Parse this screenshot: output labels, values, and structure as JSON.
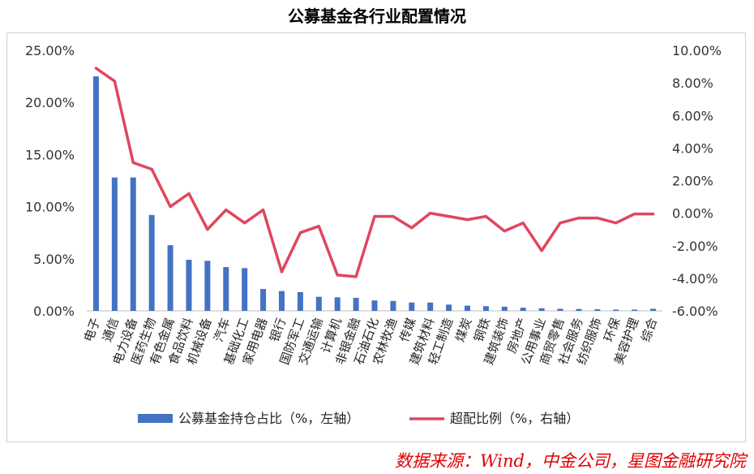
{
  "chart_data": {
    "type": "bar+line",
    "title": "公募基金各行业配置情况",
    "categories": [
      "电子",
      "通信",
      "电力设备",
      "医药生物",
      "有色金属",
      "食品饮料",
      "机械设备",
      "汽车",
      "基础化工",
      "家用电器",
      "银行",
      "国防军工",
      "交通运输",
      "计算机",
      "非银金融",
      "石油石化",
      "农林牧渔",
      "传媒",
      "建筑材料",
      "轻工制造",
      "煤炭",
      "钢铁",
      "建筑装饰",
      "房地产",
      "公用事业",
      "商贸零售",
      "社会服务",
      "纺织服饰",
      "环保",
      "美容护理",
      "综合"
    ],
    "series": [
      {
        "name": "公募基金持仓占比（%，左轴）",
        "axis": "left",
        "type": "bar",
        "color": "#4472C4",
        "values": [
          22.5,
          12.8,
          12.8,
          9.2,
          6.3,
          4.9,
          4.8,
          4.2,
          4.1,
          2.1,
          1.9,
          1.8,
          1.35,
          1.3,
          1.25,
          1.0,
          0.95,
          0.8,
          0.8,
          0.6,
          0.5,
          0.45,
          0.4,
          0.3,
          0.25,
          0.2,
          0.18,
          0.15,
          0.12,
          0.12,
          0.2
        ]
      },
      {
        "name": "超配比例（%，右轴）",
        "axis": "right",
        "type": "line",
        "color": "#E0465E",
        "values": [
          8.9,
          8.1,
          3.1,
          2.7,
          0.4,
          1.2,
          -1.0,
          0.2,
          -0.6,
          0.2,
          -3.6,
          -1.2,
          -0.8,
          -3.8,
          -3.9,
          -0.2,
          -0.2,
          -0.9,
          0.0,
          -0.2,
          -0.4,
          -0.2,
          -1.1,
          -0.6,
          -2.3,
          -0.6,
          -0.3,
          -0.3,
          -0.6,
          -0.05,
          -0.05
        ]
      }
    ],
    "y_left": {
      "min": 0,
      "max": 25,
      "ticks": [
        "0.00%",
        "5.00%",
        "10.00%",
        "15.00%",
        "20.00%",
        "25.00%"
      ]
    },
    "y_right": {
      "min": -6,
      "max": 10,
      "ticks": [
        "-6.00%",
        "-4.00%",
        "-2.00%",
        "0.00%",
        "2.00%",
        "4.00%",
        "6.00%",
        "8.00%",
        "10.00%"
      ]
    },
    "grid": false,
    "legend_position": "bottom"
  },
  "source": "数据来源：Wind，中金公司，星图金融研究院"
}
